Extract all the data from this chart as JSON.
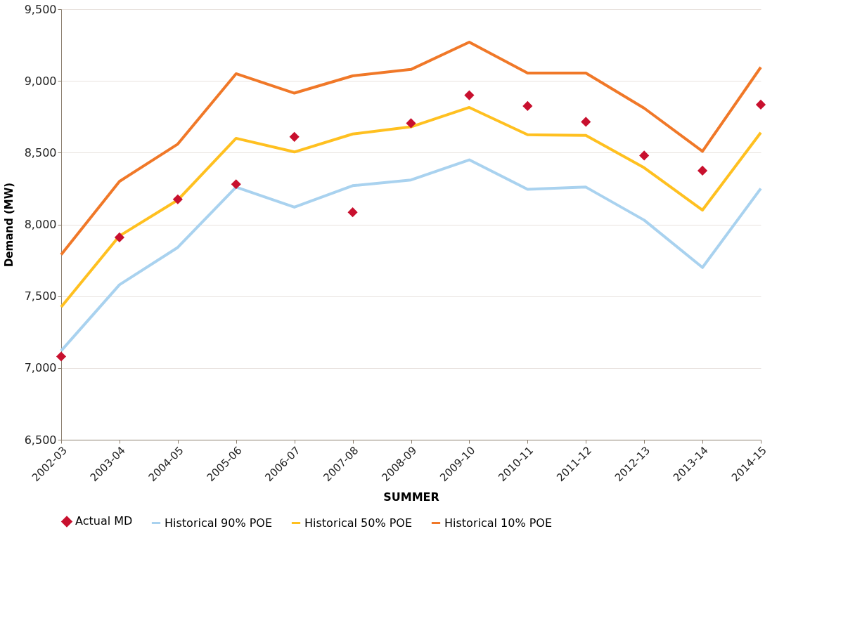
{
  "chart_data": {
    "type": "line",
    "xlabel": "SUMMER",
    "ylabel": "Demand (MW)",
    "categories": [
      "2002-03",
      "2003-04",
      "2004-05",
      "2005-06",
      "2006-07",
      "2007-08",
      "2008-09",
      "2009-10",
      "2010-11",
      "2011-12",
      "2012-13",
      "2013-14",
      "2014-15"
    ],
    "series": [
      {
        "name": "Actual MD",
        "type": "scatter",
        "marker": "diamond",
        "color": "#c8102e",
        "values": [
          7080,
          7910,
          8175,
          8280,
          8610,
          8085,
          8705,
          8900,
          8825,
          8715,
          8480,
          8375,
          8835
        ]
      },
      {
        "name": "Historical 90% POE",
        "color": "#a9d2ef",
        "values": [
          7120,
          7580,
          7840,
          8260,
          8120,
          8270,
          8310,
          8450,
          8245,
          8260,
          8030,
          7700,
          8250
        ]
      },
      {
        "name": "Historical 50% POE",
        "color": "#ffc020",
        "values": [
          7425,
          7920,
          8170,
          8600,
          8505,
          8630,
          8680,
          8815,
          8625,
          8620,
          8395,
          8100,
          8640
        ]
      },
      {
        "name": "Historical 10% POE",
        "color": "#f07828",
        "values": [
          7790,
          8300,
          8560,
          9050,
          8915,
          9035,
          9080,
          9270,
          9055,
          9055,
          8810,
          8510,
          9095
        ]
      }
    ],
    "ylim": [
      6500,
      9500
    ],
    "yticks": [
      {
        "value": 6500,
        "label": "6,500"
      },
      {
        "value": 7000,
        "label": "7,000"
      },
      {
        "value": 7500,
        "label": "7,500"
      },
      {
        "value": 8000,
        "label": "8,000"
      },
      {
        "value": 8500,
        "label": "8,500"
      },
      {
        "value": 9000,
        "label": "9,000"
      },
      {
        "value": 9500,
        "label": "9,500"
      }
    ],
    "grid": "y",
    "legend": "bottom",
    "line_style": "solid"
  }
}
